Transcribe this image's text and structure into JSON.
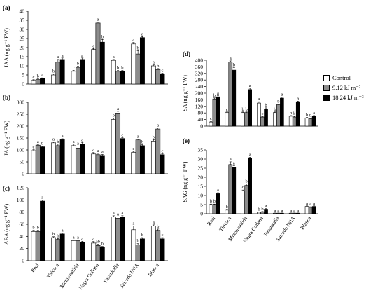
{
  "chart_data": [
    {
      "panel": "(a)",
      "type": "bar",
      "ylabel": "IAA (ng g⁻¹ FW)",
      "ylim": [
        0,
        40
      ],
      "yticks": [
        0,
        5,
        10,
        15,
        20,
        25,
        30,
        35,
        40
      ],
      "categories": [
        "Real",
        "Titicaca",
        "Mintumatilda",
        "Negra Collana",
        "Pasankalla",
        "Salcedo INIA",
        "Blanca"
      ],
      "series": [
        {
          "name": "Control",
          "values": [
            2,
            5,
            7,
            19,
            13,
            22,
            10
          ],
          "errors": [
            0.4,
            0.5,
            0.5,
            0.5,
            0.5,
            0.8,
            0.5
          ],
          "letters": [
            "c",
            "b",
            "c",
            "c",
            "a",
            "a",
            "a"
          ]
        },
        {
          "name": "9.12 kJ m⁻²",
          "values": [
            2.5,
            12,
            9,
            33.5,
            7,
            16.5,
            8
          ],
          "errors": [
            0.4,
            1.5,
            0.8,
            0.5,
            0.5,
            1.8,
            0.5
          ],
          "letters": [
            "b",
            "a",
            "b",
            "a",
            "b",
            "b",
            "b"
          ]
        },
        {
          "name": "18.24 kJ m⁻²",
          "values": [
            3,
            13.5,
            13.5,
            23,
            7,
            25.5,
            5.5
          ],
          "errors": [
            0.4,
            0.8,
            0.8,
            1.5,
            0.5,
            0.5,
            0.5
          ],
          "letters": [
            "a",
            "a",
            "a",
            "b",
            "b",
            "a",
            "c"
          ]
        }
      ]
    },
    {
      "panel": "(b)",
      "type": "bar",
      "ylabel": "JA (ng g⁻¹ FW)",
      "ylim": [
        0,
        300
      ],
      "yticks": [
        0,
        50,
        100,
        150,
        200,
        250,
        300
      ],
      "categories": [
        "Real",
        "Titicaca",
        "Mintumatilda",
        "Negra Collana",
        "Pasankalla",
        "Salcedo INIA",
        "Blanca"
      ],
      "series": [
        {
          "name": "Control",
          "values": [
            97,
            130,
            118,
            83,
            228,
            90,
            137
          ],
          "errors": [
            4,
            4,
            6,
            6,
            6,
            4,
            6
          ],
          "letters": [
            "c",
            "a",
            "a",
            "a",
            "b",
            "c",
            "b"
          ]
        },
        {
          "name": "9.12 kJ m⁻²",
          "values": [
            120,
            118,
            108,
            80,
            255,
            142,
            188
          ],
          "errors": [
            3,
            6,
            8,
            6,
            7,
            4,
            4
          ],
          "letters": [
            "a",
            "b",
            "a",
            "a",
            "a",
            "a",
            "a"
          ]
        },
        {
          "name": "18.24 kJ m⁻²",
          "values": [
            113,
            143,
            125,
            77,
            148,
            118,
            80
          ],
          "errors": [
            3,
            4,
            6,
            4,
            4,
            4,
            4
          ],
          "letters": [
            "b",
            "a",
            "a",
            "a",
            "c",
            "b",
            "c"
          ]
        }
      ]
    },
    {
      "panel": "(c)",
      "type": "bar",
      "ylabel": "ABA (ng g⁻¹ FW)",
      "ylim": [
        0,
        120
      ],
      "yticks": [
        0,
        20,
        40,
        60,
        80,
        100,
        120
      ],
      "categories": [
        "Real",
        "Titicaca",
        "Mintumatilda",
        "Negra Collana",
        "Pasankalla",
        "Salcedo INIA",
        "Blanca"
      ],
      "series": [
        {
          "name": "Control",
          "values": [
            48,
            38,
            33,
            29,
            72,
            51,
            57
          ],
          "errors": [
            2,
            1.5,
            1,
            2.5,
            2,
            6,
            2
          ],
          "letters": [
            "b",
            "b",
            "a",
            "a",
            "a",
            "a",
            "a"
          ]
        },
        {
          "name": "9.12 kJ m⁻²",
          "values": [
            48,
            35,
            33,
            25,
            70,
            26,
            50
          ],
          "errors": [
            2,
            1.5,
            1,
            2,
            2,
            2,
            2
          ],
          "letters": [
            "b",
            "b",
            "a",
            "ab",
            "a",
            "b",
            "b"
          ]
        },
        {
          "name": "18.24 kJ m⁻²",
          "values": [
            98,
            44,
            30,
            22,
            72,
            36,
            36
          ],
          "errors": [
            2,
            1.5,
            2,
            1.5,
            2,
            2,
            2
          ],
          "letters": [
            "a",
            "a",
            "a",
            "b",
            "a",
            "b",
            "c"
          ]
        }
      ]
    },
    {
      "panel": "(d)",
      "type": "bar",
      "ylabel": "SA (ng g⁻¹ FW)",
      "ylim": [
        0,
        400
      ],
      "yticks": [
        0,
        40,
        80,
        120,
        160,
        200,
        240,
        280,
        320,
        360,
        400
      ],
      "categories": [
        "Real",
        "Titicaca",
        "Mintumatilda",
        "Negra Collana",
        "Pasankalla",
        "Salcedo INIA",
        "Blanca"
      ],
      "series": [
        {
          "name": "Control",
          "values": [
            25,
            82,
            82,
            140,
            82,
            60,
            50
          ],
          "errors": [
            4,
            4,
            4,
            8,
            4,
            4,
            4
          ],
          "letters": [
            "c",
            "c",
            "b",
            "a",
            "b",
            "b",
            "b"
          ]
        },
        {
          "name": "9.12 kJ m⁻²",
          "values": [
            165,
            390,
            82,
            55,
            130,
            55,
            45
          ],
          "errors": [
            6,
            6,
            4,
            4,
            4,
            4,
            4
          ],
          "letters": [
            "b",
            "a",
            "b",
            "c",
            "b",
            "b",
            "b"
          ]
        },
        {
          "name": "18.24 kJ m⁻²",
          "values": [
            178,
            340,
            222,
            105,
            170,
            148,
            60
          ],
          "errors": [
            6,
            15,
            8,
            6,
            6,
            4,
            4
          ],
          "letters": [
            "a",
            "b",
            "a",
            "b",
            "a",
            "a",
            "a"
          ]
        }
      ]
    },
    {
      "panel": "(e)",
      "type": "bar",
      "ylabel": "SAG (ng g⁻¹ FW)",
      "ylim": [
        0,
        35
      ],
      "yticks": [
        0,
        5,
        10,
        15,
        20,
        25,
        30,
        35
      ],
      "categories": [
        "Real",
        "Titicaca",
        "Mintumatilda",
        "Negra Collana",
        "Pasankalla",
        "Salcedo INIA",
        "Blanca"
      ],
      "series": [
        {
          "name": "Control",
          "values": [
            5,
            2,
            12.5,
            0.8,
            0.3,
            0.3,
            4
          ],
          "errors": [
            0.3,
            0.4,
            0.5,
            0.2,
            0.1,
            0.1,
            0.3
          ],
          "letters": [
            "b",
            "b",
            "c",
            "b",
            "a",
            "a",
            "a"
          ]
        },
        {
          "name": "9.12 kJ m⁻²",
          "values": [
            5,
            27,
            15.5,
            1,
            0.3,
            0.3,
            3.5
          ],
          "errors": [
            0.3,
            1.5,
            0.8,
            0.2,
            0.1,
            0.1,
            0.3
          ],
          "letters": [
            "b",
            "a",
            "b",
            "b",
            "a",
            "a",
            "a"
          ]
        },
        {
          "name": "18.24 kJ m⁻²",
          "values": [
            11,
            25.5,
            30.5,
            2.5,
            0.3,
            0.3,
            4
          ],
          "errors": [
            0.5,
            0.8,
            0.5,
            0.3,
            0.1,
            0.1,
            0.3
          ],
          "letters": [
            "a",
            "a",
            "a",
            "a",
            "a",
            "a",
            "a"
          ]
        }
      ]
    }
  ],
  "legend": {
    "items": [
      {
        "label": "Control",
        "color": "#ffffff"
      },
      {
        "label": "9.12 kJ m⁻²",
        "color": "#8c8c8c"
      },
      {
        "label": "18.24 kJ m⁻²",
        "color": "#000000"
      }
    ]
  },
  "colors": {
    "control": "#ffffff",
    "low": "#8c8c8c",
    "high": "#000000"
  }
}
